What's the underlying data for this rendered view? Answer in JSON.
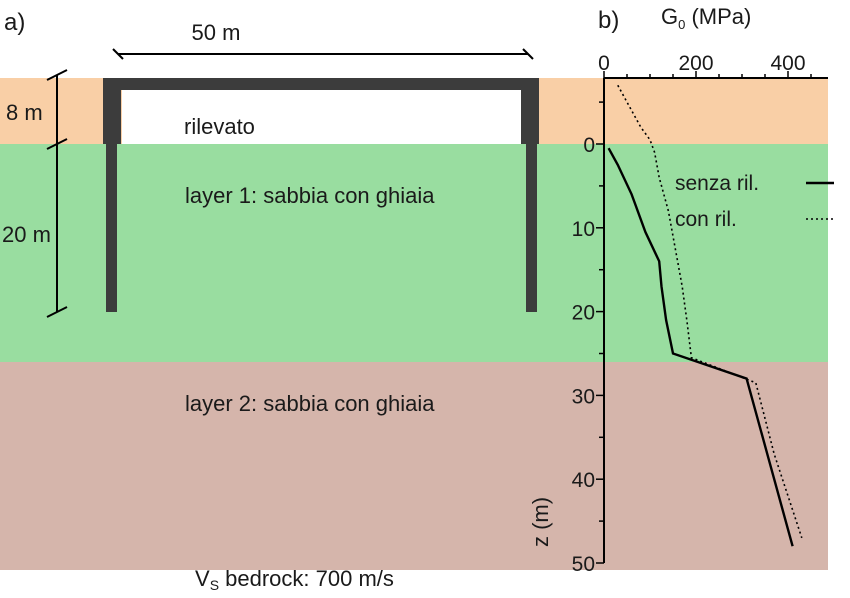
{
  "panel_a": {
    "label": "a)",
    "span_label": "50 m",
    "fill_thickness": "8 m",
    "layer1_thickness": "20 m",
    "fill_label": "rilevato",
    "layer1_label": "layer 1: sabbia con ghiaia",
    "layer2_label": "layer 2: sabbia con ghiaia",
    "bedrock_prefix": "V",
    "bedrock_sub": "S",
    "bedrock_suffix": " bedrock: 700 m/s"
  },
  "colors": {
    "fill": "#F9CFA6",
    "layer1": "#99DDA0",
    "layer2": "#D5B5AB",
    "structure": "#3C3C3C"
  },
  "chart_data": {
    "type": "line",
    "panel_label": "b)",
    "xlabel_main": "G",
    "xlabel_sub": "0",
    "xlabel_unit": " (MPa)",
    "ylabel": "z (m)",
    "xlim": [
      0,
      500
    ],
    "ylim": [
      -8,
      50
    ],
    "x_axis_position": "top",
    "y_inverted": true,
    "xticks": [
      0,
      200,
      400
    ],
    "yticks": [
      0,
      10,
      20,
      30,
      40,
      50
    ],
    "legend_position": "top-right",
    "series": [
      {
        "name": "senza ril.",
        "style": "solid",
        "points": [
          [
            10,
            0.5
          ],
          [
            30,
            2.5
          ],
          [
            60,
            6
          ],
          [
            90,
            10.5
          ],
          [
            120,
            14
          ],
          [
            125,
            17
          ],
          [
            135,
            21
          ],
          [
            150,
            25
          ],
          [
            310,
            28
          ],
          [
            360,
            38
          ],
          [
            410,
            48
          ]
        ]
      },
      {
        "name": "con ril.",
        "style": "dotted",
        "points": [
          [
            30,
            -7
          ],
          [
            50,
            -5
          ],
          [
            80,
            -2
          ],
          [
            100,
            -0.5
          ],
          [
            110,
            1
          ],
          [
            120,
            4
          ],
          [
            140,
            8
          ],
          [
            160,
            14
          ],
          [
            170,
            17
          ],
          [
            180,
            21
          ],
          [
            190,
            25.5
          ],
          [
            330,
            28.5
          ],
          [
            370,
            37
          ],
          [
            430,
            47
          ]
        ]
      }
    ]
  }
}
